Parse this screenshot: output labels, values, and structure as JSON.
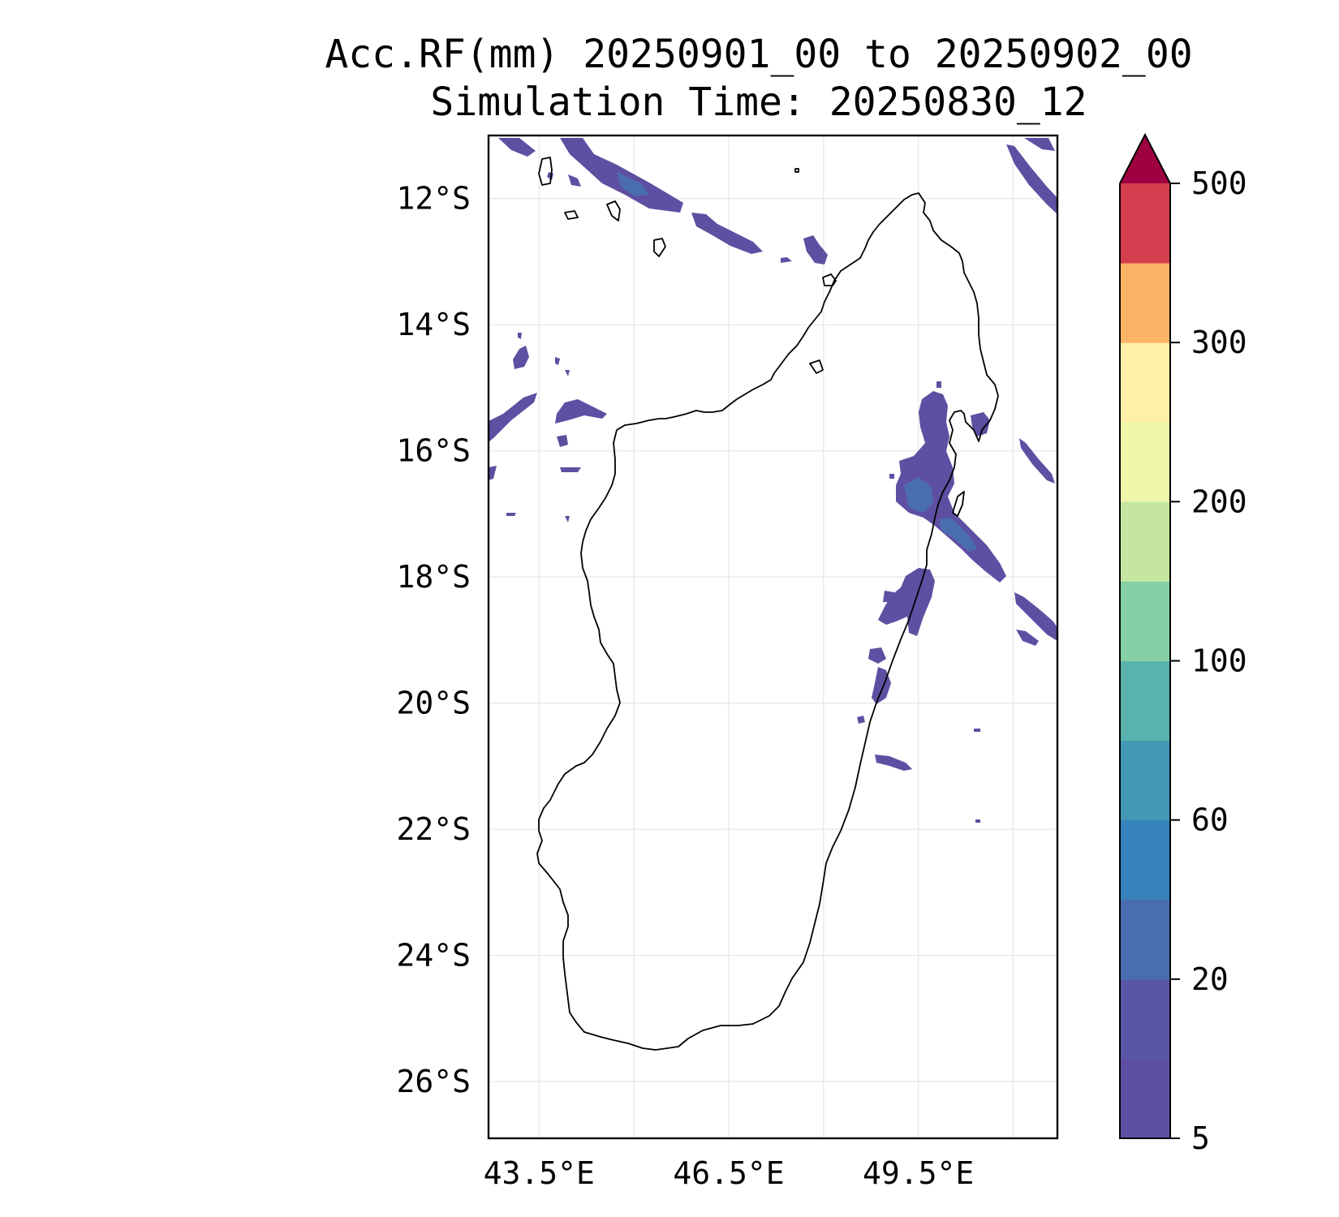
{
  "title": {
    "line1": "Acc.RF(mm) 20250901_00 to 20250902_00",
    "line2": "Simulation Time: 20250830_12"
  },
  "map": {
    "lon_range": [
      42.7,
      51.7
    ],
    "lat_range": [
      -26.9,
      -11.0
    ],
    "lat_ticks": [
      {
        "value": -12,
        "label": "12°S"
      },
      {
        "value": -14,
        "label": "14°S"
      },
      {
        "value": -16,
        "label": "16°S"
      },
      {
        "value": -18,
        "label": "18°S"
      },
      {
        "value": -20,
        "label": "20°S"
      },
      {
        "value": -22,
        "label": "22°S"
      },
      {
        "value": -24,
        "label": "24°S"
      },
      {
        "value": -26,
        "label": "26°S"
      }
    ],
    "lon_ticks": [
      {
        "value": 43.5,
        "label": "43.5°E"
      },
      {
        "value": 46.5,
        "label": "46.5°E"
      },
      {
        "value": 49.5,
        "label": "49.5°E"
      }
    ],
    "grid_lons": [
      43.5,
      45.0,
      46.5,
      48.0,
      49.5,
      51.0
    ],
    "grid_lats": [
      -12,
      -14,
      -16,
      -18,
      -20,
      -22,
      -24,
      -26
    ],
    "grid": true
  },
  "colorbar": {
    "levels": [
      5,
      10,
      20,
      40,
      60,
      80,
      100,
      150,
      200,
      250,
      300,
      400,
      500
    ],
    "colors": [
      "#5e4fa2",
      "#5956a8",
      "#4a6db0",
      "#3781bc",
      "#4298b5",
      "#59b2ad",
      "#86cfa5",
      "#c4e69e",
      "#edf6a9",
      "#fff0a8",
      "#fdb365",
      "#d53e4f"
    ],
    "extend_color": "#9e0142",
    "extend": "max",
    "tick_labels": [
      {
        "level": 5,
        "label": "5"
      },
      {
        "level": 20,
        "label": "20"
      },
      {
        "level": 60,
        "label": "60"
      },
      {
        "level": 100,
        "label": "100"
      },
      {
        "level": 200,
        "label": "200"
      },
      {
        "level": 300,
        "label": "300"
      },
      {
        "level": 500,
        "label": "500"
      }
    ]
  },
  "colors": {
    "rain_light": "#5e4fa2",
    "rain_medium": "#4a6db0",
    "coastline": "#000000",
    "gridline": "#e6e6e6"
  }
}
